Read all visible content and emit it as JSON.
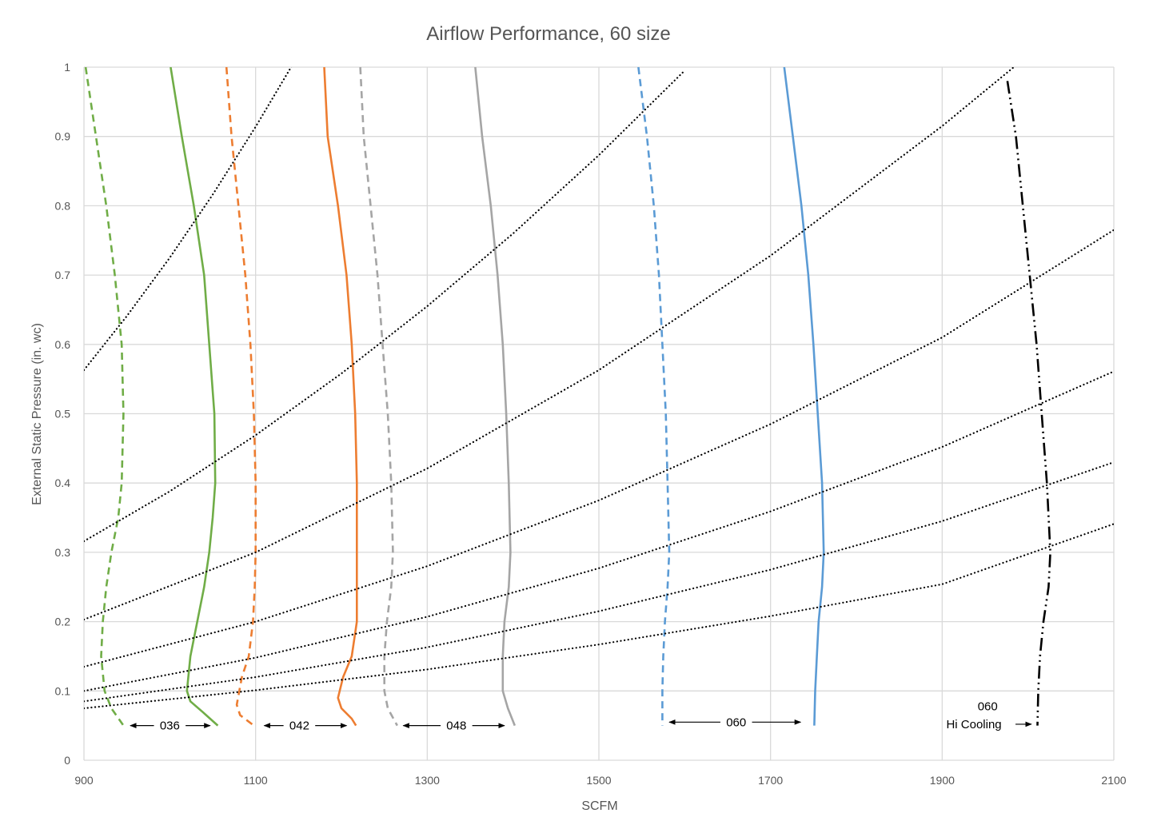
{
  "chart_data": {
    "type": "line",
    "title": "Airflow Performance, 60 size",
    "xlabel": "SCFM",
    "ylabel": "External Static Pressure (in. wc)",
    "xlim": [
      900,
      2100
    ],
    "ylim": [
      0,
      1
    ],
    "xticks": [
      900,
      1100,
      1300,
      1500,
      1700,
      1900,
      2100
    ],
    "yticks": [
      0,
      0.1,
      0.2,
      0.3,
      0.4,
      0.5,
      0.6,
      0.7,
      0.8,
      0.9,
      1
    ],
    "xtick_labels": [
      "900",
      "1100",
      "1300",
      "1500",
      "1700",
      "1900",
      "2100"
    ],
    "ytick_labels": [
      "0",
      "0.1",
      "0.2",
      "0.3",
      "0.4",
      "0.5",
      "0.6",
      "0.7",
      "0.8",
      "0.9",
      "1"
    ],
    "grid": true,
    "legend": "none",
    "series": [
      {
        "color": "#70ad47",
        "style": "dashed",
        "x": [
          902,
          914,
          926,
          936,
          944,
          946,
          944,
          940,
          932,
          926,
          922,
          920,
          924,
          932,
          946
        ],
        "y": [
          1.0,
          0.9,
          0.8,
          0.7,
          0.6,
          0.5,
          0.4,
          0.35,
          0.3,
          0.25,
          0.2,
          0.15,
          0.1,
          0.075,
          0.05
        ]
      },
      {
        "color": "#70ad47",
        "style": "solid",
        "x": [
          1001,
          1014,
          1028,
          1040,
          1046,
          1052,
          1053,
          1050,
          1046,
          1040,
          1032,
          1024,
          1020,
          1024,
          1038,
          1056
        ],
        "y": [
          1.0,
          0.9,
          0.8,
          0.7,
          0.6,
          0.5,
          0.4,
          0.35,
          0.3,
          0.25,
          0.2,
          0.15,
          0.1,
          0.085,
          0.07,
          0.05
        ]
      },
      {
        "color": "#ed7d31",
        "style": "dashed",
        "x": [
          1066,
          1072,
          1080,
          1088,
          1094,
          1098,
          1100,
          1100,
          1099,
          1097,
          1092,
          1084,
          1078,
          1082,
          1098
        ],
        "y": [
          1.0,
          0.9,
          0.8,
          0.7,
          0.6,
          0.5,
          0.4,
          0.3,
          0.25,
          0.2,
          0.15,
          0.12,
          0.08,
          0.065,
          0.05
        ]
      },
      {
        "color": "#ed7d31",
        "style": "solid",
        "x": [
          1180,
          1184,
          1196,
          1206,
          1212,
          1216,
          1218,
          1218,
          1218,
          1218,
          1212,
          1202,
          1196,
          1200,
          1212,
          1217
        ],
        "y": [
          1.0,
          0.9,
          0.8,
          0.7,
          0.6,
          0.5,
          0.4,
          0.3,
          0.25,
          0.2,
          0.15,
          0.12,
          0.09,
          0.075,
          0.06,
          0.05
        ]
      },
      {
        "color": "#a5a5a5",
        "style": "dashed",
        "x": [
          1222,
          1226,
          1234,
          1242,
          1248,
          1254,
          1258,
          1260,
          1258,
          1253,
          1250,
          1250,
          1254,
          1265
        ],
        "y": [
          1.0,
          0.9,
          0.8,
          0.7,
          0.6,
          0.5,
          0.4,
          0.3,
          0.25,
          0.2,
          0.15,
          0.1,
          0.075,
          0.05
        ]
      },
      {
        "color": "#a5a5a5",
        "style": "solid",
        "x": [
          1356,
          1364,
          1374,
          1382,
          1388,
          1392,
          1395,
          1397,
          1395,
          1390,
          1388,
          1388,
          1394,
          1402
        ],
        "y": [
          1.0,
          0.9,
          0.8,
          0.7,
          0.6,
          0.5,
          0.4,
          0.3,
          0.25,
          0.2,
          0.15,
          0.1,
          0.075,
          0.05
        ]
      },
      {
        "color": "#5b9bd5",
        "style": "dashed",
        "x": [
          1546,
          1556,
          1564,
          1570,
          1574,
          1578,
          1580,
          1582,
          1580,
          1577,
          1575,
          1574,
          1574
        ],
        "y": [
          1.0,
          0.9,
          0.8,
          0.7,
          0.6,
          0.5,
          0.4,
          0.3,
          0.25,
          0.2,
          0.15,
          0.1,
          0.05
        ]
      },
      {
        "color": "#5b9bd5",
        "style": "solid",
        "x": [
          1716,
          1726,
          1736,
          1744,
          1750,
          1755,
          1760,
          1762,
          1760,
          1756,
          1754,
          1752,
          1751
        ],
        "y": [
          1.0,
          0.9,
          0.8,
          0.7,
          0.6,
          0.5,
          0.4,
          0.3,
          0.25,
          0.2,
          0.15,
          0.1,
          0.05
        ]
      },
      {
        "color": "#000000",
        "style": "dashdotdot",
        "x": [
          1976,
          1986,
          1994,
          2002,
          2010,
          2016,
          2022,
          2026,
          2024,
          2018,
          2014,
          2012,
          2011
        ],
        "y": [
          0.98,
          0.9,
          0.8,
          0.7,
          0.6,
          0.5,
          0.4,
          0.3,
          0.25,
          0.2,
          0.15,
          0.1,
          0.05
        ]
      },
      {
        "color": "#000000",
        "style": "dotted",
        "x": [
          900,
          950,
          1000,
          1050,
          1100,
          1150,
          1200
        ],
        "y": [
          0.563,
          0.641,
          0.725,
          0.816,
          0.914,
          1.018,
          1.128
        ]
      },
      {
        "color": "#000000",
        "style": "dotted",
        "x": [
          900,
          1000,
          1100,
          1200,
          1300,
          1400,
          1500,
          1600
        ],
        "y": [
          0.316,
          0.388,
          0.469,
          0.558,
          0.655,
          0.76,
          0.873,
          0.995
        ]
      },
      {
        "color": "#000000",
        "style": "dotted",
        "x": [
          900,
          1100,
          1300,
          1500,
          1700,
          1900,
          2000
        ],
        "y": [
          0.203,
          0.3,
          0.421,
          0.563,
          0.728,
          0.915,
          1.017
        ]
      },
      {
        "color": "#000000",
        "style": "dotted",
        "x": [
          900,
          1100,
          1300,
          1500,
          1700,
          1900,
          2100
        ],
        "y": [
          0.135,
          0.2,
          0.28,
          0.375,
          0.485,
          0.61,
          0.765
        ]
      },
      {
        "color": "#000000",
        "style": "dotted",
        "x": [
          900,
          1100,
          1300,
          1500,
          1700,
          1900,
          2100
        ],
        "y": [
          0.1,
          0.148,
          0.207,
          0.277,
          0.359,
          0.452,
          0.561
        ]
      },
      {
        "color": "#000000",
        "style": "dotted",
        "x": [
          900,
          1100,
          1300,
          1500,
          1700,
          1900,
          2100
        ],
        "y": [
          0.085,
          0.12,
          0.163,
          0.215,
          0.275,
          0.345,
          0.43
        ]
      },
      {
        "color": "#000000",
        "style": "dotted",
        "x": [
          900,
          1100,
          1300,
          1500,
          1700,
          1900,
          2100
        ],
        "y": [
          0.075,
          0.101,
          0.131,
          0.167,
          0.208,
          0.254,
          0.341
        ]
      }
    ],
    "annotations": [
      {
        "text": "036",
        "x": 1000,
        "y": 0.05,
        "arrow_from": [
          1000,
          0.05
        ],
        "arrow_left_to": 954,
        "arrow_right_to": 1047
      },
      {
        "text": "042",
        "x": 1151,
        "y": 0.05,
        "arrow_left_to": 1110,
        "arrow_right_to": 1206
      },
      {
        "text": "048",
        "x": 1334,
        "y": 0.05,
        "arrow_left_to": 1272,
        "arrow_right_to": 1390
      },
      {
        "text": "060",
        "x": 1660,
        "y": 0.055,
        "arrow_left_to": 1582,
        "arrow_right_to": 1735
      },
      {
        "text": "060",
        "x": 1953,
        "y": 0.078
      },
      {
        "text": "Hi Cooling",
        "x": 1937,
        "y": 0.052,
        "arrow_left_to": null,
        "arrow_right_to": 2004
      }
    ]
  }
}
